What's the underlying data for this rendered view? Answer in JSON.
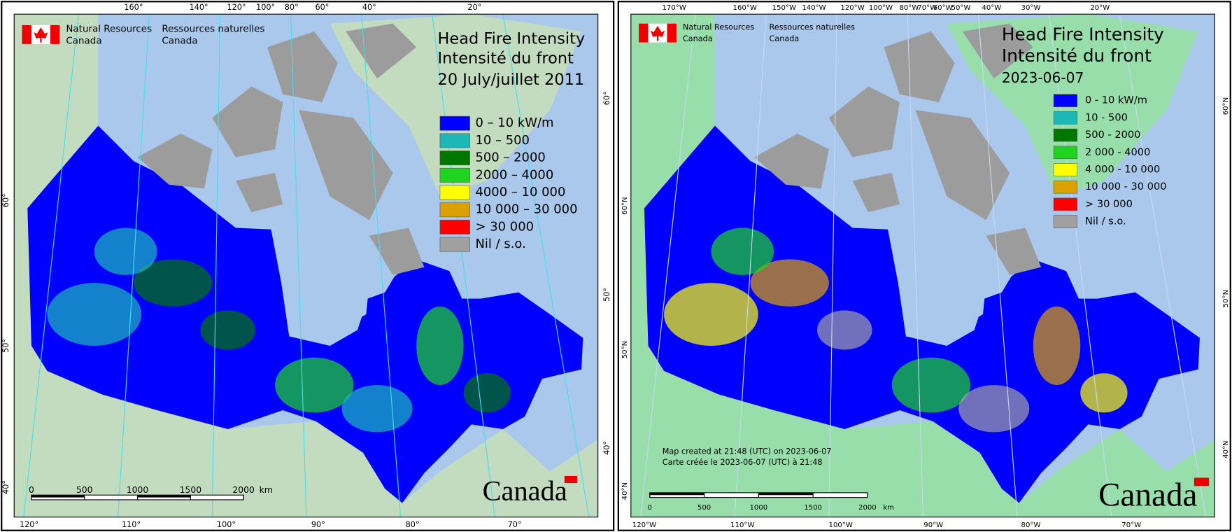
{
  "maps": [
    {
      "agency_en": [
        "Natural Resources",
        "Canada"
      ],
      "agency_fr": [
        "Ressources naturelles",
        "Canada"
      ],
      "title": [
        "Head Fire Intensity",
        "Intensité du front",
        "20 July/juillet 2011"
      ],
      "legend": [
        {
          "label": "0 – 10 kW/m",
          "color": "#0000ff"
        },
        {
          "label": "10 – 500",
          "color": "#1cb8b8"
        },
        {
          "label": "500 – 2000",
          "color": "#007800"
        },
        {
          "label": "2000 – 4000",
          "color": "#1ed41e"
        },
        {
          "label": "4000 – 10 000",
          "color": "#ffff00"
        },
        {
          "label": "10 000 – 30 000",
          "color": "#dca000"
        },
        {
          "label": "> 30 000",
          "color": "#ff0000"
        },
        {
          "label": "Nil / s.o.",
          "color": "#a0a0a0"
        }
      ],
      "top_labels": [
        "160°",
        "140°",
        "120°",
        "100°",
        "80°",
        "60°",
        "40°",
        "20°"
      ],
      "bottom_labels": [
        "120°",
        "110°",
        "100°",
        "90°",
        "80°",
        "70°"
      ],
      "left_labels": [
        "60°",
        "50°",
        "40°"
      ],
      "right_labels": [
        "60°",
        "50°",
        "40°"
      ],
      "scale": {
        "ticks": [
          0,
          500,
          1000,
          1500,
          2000
        ],
        "unit": "km"
      },
      "wordmark": "Canada"
    },
    {
      "agency_en": [
        "Natural Resources",
        "Canada"
      ],
      "agency_fr": [
        "Ressources naturelles",
        "Canada"
      ],
      "title": [
        "Head Fire Intensity",
        "Intensité du front",
        "2023-06-07"
      ],
      "legend": [
        {
          "label": "0 - 10 kW/m",
          "color": "#0000ff"
        },
        {
          "label": "10 - 500",
          "color": "#1cb8b8"
        },
        {
          "label": "500 - 2000",
          "color": "#007800"
        },
        {
          "label": "2 000 - 4000",
          "color": "#1ed41e"
        },
        {
          "label": "4 000 - 10 000",
          "color": "#ffff00"
        },
        {
          "label": "10 000 - 30 000",
          "color": "#dca000"
        },
        {
          "label": "> 30 000",
          "color": "#ff0000"
        },
        {
          "label": "Nil / s.o.",
          "color": "#a0a0a0"
        }
      ],
      "top_labels": [
        "170°W",
        "160°W",
        "150°W",
        "140°W",
        "120°W",
        "100°W",
        "80°W",
        "70°W",
        "60°W",
        "50°W",
        "40°W",
        "30°W",
        "20°W"
      ],
      "bottom_labels": [
        "120°W",
        "110°W",
        "100°W",
        "90°W",
        "80°W",
        "70°W"
      ],
      "left_labels": [
        "60°N",
        "50°N",
        "40°N"
      ],
      "right_labels": [
        "60°N",
        "50°N",
        "40°N"
      ],
      "scale": {
        "ticks": [
          0,
          500,
          1000,
          1500,
          2000
        ],
        "unit": "km"
      },
      "notes": [
        "Map created at 21:48 (UTC) on 2023-06-07",
        "Carte créée le 2023-06-07 (UTC) à 21:48"
      ],
      "wordmark": "Canada"
    }
  ]
}
